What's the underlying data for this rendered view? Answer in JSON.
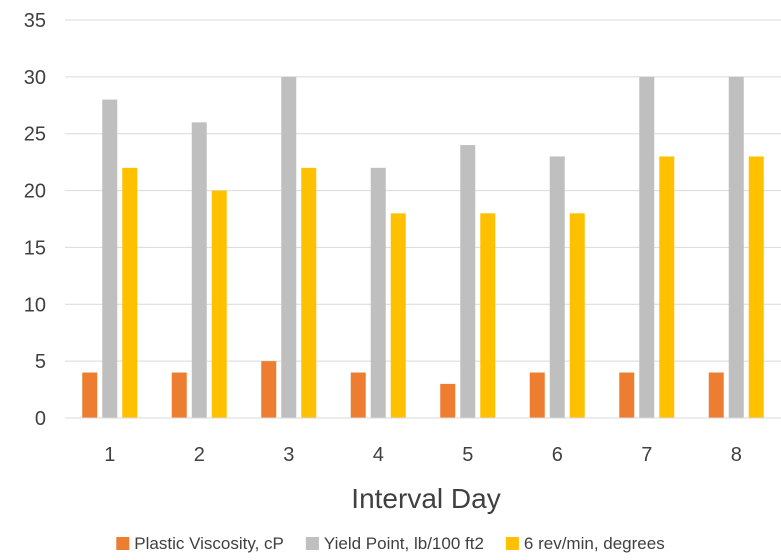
{
  "chart_data": {
    "type": "bar",
    "title": "",
    "xlabel": "Interval Day",
    "ylabel": "",
    "categories": [
      "1",
      "2",
      "3",
      "4",
      "5",
      "6",
      "7",
      "8"
    ],
    "ylim": [
      0,
      35
    ],
    "yticks": [
      0,
      5,
      10,
      15,
      20,
      25,
      30,
      35
    ],
    "grid": true,
    "legend_position": "bottom",
    "series": [
      {
        "name": "Plastic Viscosity, cP",
        "color": "#ED7D31",
        "values": [
          4,
          4,
          5,
          4,
          3,
          4,
          4,
          4
        ]
      },
      {
        "name": "Yield Point, lb/100 ft2",
        "color": "#BFBFBF",
        "values": [
          28,
          26,
          30,
          22,
          24,
          23,
          30,
          30
        ]
      },
      {
        "name": "6 rev/min, degrees",
        "color": "#FFC000",
        "values": [
          22,
          20,
          22,
          18,
          18,
          18,
          23,
          23
        ]
      }
    ]
  }
}
